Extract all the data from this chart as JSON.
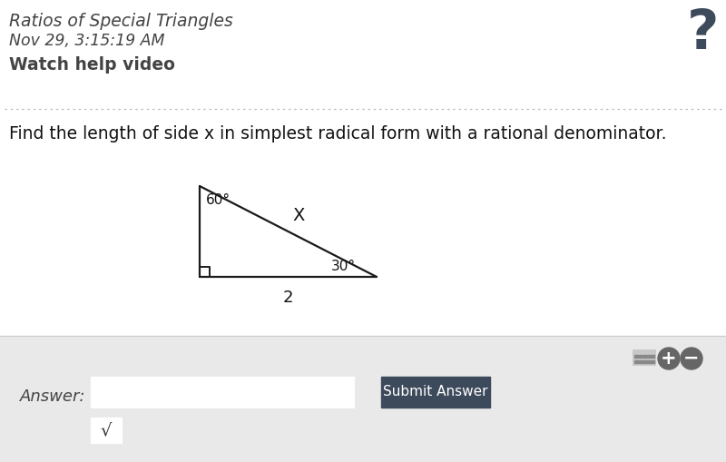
{
  "bg_color": "#ffffff",
  "title_text": "Ratios of Special Triangles",
  "subtitle_text": "Nov 29, 3:15:19 AM",
  "watch_text": "Watch help video",
  "question_text": "Find the length of side x in simplest radical form with a rational denominator.",
  "angle_top": "60°",
  "angle_bottom_right": "30°",
  "label_hyp": "X",
  "label_base": "2",
  "line_color": "#1a1a1a",
  "line_width": 1.6,
  "footer_bg": "#e9e9e9",
  "answer_label": "Answer:",
  "submit_text": "Submit Answer",
  "submit_bg": "#3d4a5c",
  "submit_text_color": "#ffffff",
  "sqrt_symbol": "√",
  "question_mark_color": "#3d4a5c",
  "dotted_line_color": "#bbbbbb",
  "text_color": "#444444",
  "font_family": "DejaVu Sans"
}
